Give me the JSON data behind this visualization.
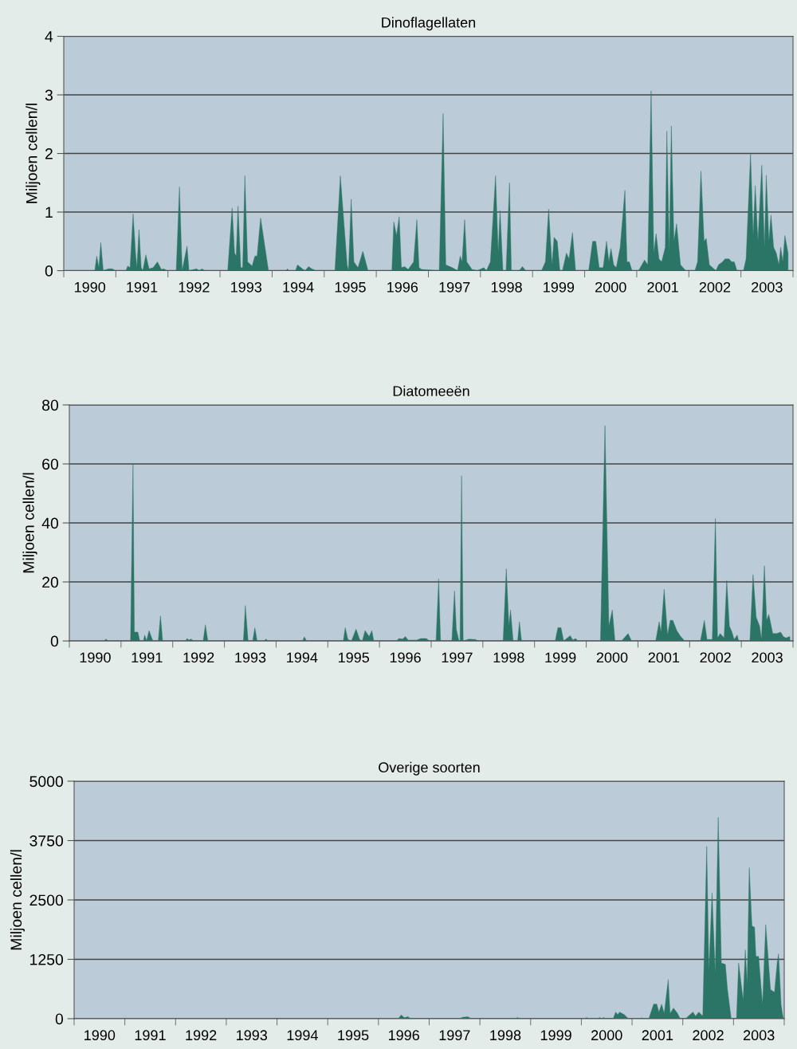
{
  "chart_data": [
    {
      "type": "area",
      "title": "Dinoflagellaten",
      "ylabel": "Miljoen cellen/l",
      "color": "#2b7566",
      "grid": "y",
      "xlim": [
        1990,
        2004
      ],
      "ylim": [
        0,
        4
      ],
      "yticks": [
        0,
        1,
        2,
        3,
        4
      ],
      "xticks": [
        {
          "value": 1990,
          "label": null
        },
        {
          "value": 1990.5,
          "label": "1990"
        },
        {
          "value": 1991,
          "label": null
        },
        {
          "value": 1991.5,
          "label": "1991"
        },
        {
          "value": 1992,
          "label": null
        },
        {
          "value": 1992.5,
          "label": "1992"
        },
        {
          "value": 1993,
          "label": null
        },
        {
          "value": 1993.5,
          "label": "1993"
        },
        {
          "value": 1994,
          "label": null
        },
        {
          "value": 1994.5,
          "label": "1994"
        },
        {
          "value": 1995,
          "label": null
        },
        {
          "value": 1995.5,
          "label": "1995"
        },
        {
          "value": 1996,
          "label": null
        },
        {
          "value": 1996.5,
          "label": "1996"
        },
        {
          "value": 1997,
          "label": null
        },
        {
          "value": 1997.5,
          "label": "1997"
        },
        {
          "value": 1998,
          "label": null
        },
        {
          "value": 1998.5,
          "label": "1998"
        },
        {
          "value": 1999,
          "label": null
        },
        {
          "value": 1999.5,
          "label": "1999"
        },
        {
          "value": 2000,
          "label": null
        },
        {
          "value": 2000.5,
          "label": "2000"
        },
        {
          "value": 2001,
          "label": null
        },
        {
          "value": 2001.5,
          "label": "2001"
        },
        {
          "value": 2002,
          "label": null
        },
        {
          "value": 2002.5,
          "label": "2002"
        },
        {
          "value": 2003,
          "label": null
        },
        {
          "value": 2003.5,
          "label": "2003"
        },
        {
          "value": 2004,
          "label": null
        }
      ],
      "x": [
        1990.596,
        1990.633,
        1990.674,
        1990.711,
        1990.758,
        1990.857,
        1990.935,
        1990.987,
        1991.195,
        1991.227,
        1991.273,
        1991.331,
        1991.378,
        1991.404,
        1991.445,
        1991.487,
        1991.518,
        1991.576,
        1991.638,
        1991.716,
        1991.799,
        1991.872,
        1991.924,
        1991.977,
        1992.159,
        1992.221,
        1992.273,
        1992.367,
        1992.404,
        1992.549,
        1992.602,
        1992.654,
        1992.706,
        1993.148,
        1993.232,
        1993.279,
        1993.31,
        1993.346,
        1993.398,
        1993.435,
        1993.477,
        1993.529,
        1993.617,
        1993.669,
        1993.711,
        1993.779,
        1993.93,
        1994.268,
        1994.294,
        1994.32,
        1994.451,
        1994.487,
        1994.581,
        1994.633,
        1994.7,
        1994.763,
        1994.841,
        1995.206,
        1995.31,
        1995.44,
        1995.466,
        1995.518,
        1995.57,
        1995.648,
        1995.742,
        1995.841,
        1996.299,
        1996.336,
        1996.388,
        1996.44,
        1996.482,
        1996.544,
        1996.612,
        1996.716,
        1996.779,
        1996.82,
        1996.872,
        1997.208,
        1997.283,
        1997.334,
        1997.46,
        1997.56,
        1997.611,
        1997.646,
        1997.696,
        1997.737,
        1997.837,
        1997.938,
        1998.064,
        1998.114,
        1998.19,
        1998.29,
        1998.341,
        1998.376,
        1998.431,
        1998.492,
        1998.557,
        1998.593,
        1998.744,
        1998.804,
        1998.87,
        1999.172,
        1999.247,
        1999.308,
        1999.373,
        1999.413,
        1999.474,
        1999.524,
        1999.574,
        1999.65,
        1999.7,
        1999.766,
        1999.826,
        2000.078,
        2000.153,
        2000.214,
        2000.279,
        2000.355,
        2000.42,
        2000.466,
        2000.506,
        2000.556,
        2000.607,
        2000.682,
        2000.773,
        2000.813,
        2000.858,
        2000.909,
        2001.035,
        2001.15,
        2001.211,
        2001.276,
        2001.327,
        2001.372,
        2001.427,
        2001.478,
        2001.548,
        2001.578,
        2001.624,
        2001.664,
        2001.714,
        2001.765,
        2001.84,
        2001.941,
        2002.117,
        2002.168,
        2002.233,
        2002.293,
        2002.334,
        2002.394,
        2002.52,
        2002.571,
        2002.646,
        2002.696,
        2002.772,
        2002.822,
        2002.873,
        2002.923,
        2003.049,
        2003.099,
        2003.185,
        2003.235,
        2003.275,
        2003.326,
        2003.401,
        2003.452,
        2003.487,
        2003.537,
        2003.577,
        2003.628,
        2003.678,
        2003.729,
        2003.764,
        2003.804,
        2003.844,
        2003.905
      ],
      "values": [
        0,
        0.25,
        0.05,
        0.48,
        0,
        0.03,
        0.03,
        0,
        0,
        0.08,
        0.05,
        0.97,
        0.3,
        0.05,
        0.7,
        0.05,
        0,
        0.27,
        0.03,
        0.05,
        0.15,
        0.02,
        0.03,
        0,
        0,
        1.43,
        0,
        0.42,
        0,
        0.03,
        0,
        0.03,
        0,
        0,
        1.07,
        0.3,
        0.25,
        1.1,
        0.05,
        0.05,
        1.62,
        0.15,
        0.08,
        0.25,
        0.25,
        0.9,
        0,
        0,
        0.03,
        0,
        0,
        0.1,
        0.03,
        0,
        0.07,
        0.03,
        0,
        0,
        1.62,
        0.1,
        0,
        1.22,
        0.15,
        0.05,
        0.33,
        0,
        0,
        0.83,
        0.6,
        0.92,
        0.05,
        0.07,
        0.02,
        0.15,
        0.87,
        0.05,
        0.02,
        0,
        2.68,
        0.1,
        0.05,
        0,
        0.25,
        0.15,
        0.87,
        0.15,
        0.02,
        0,
        0.05,
        0,
        0.15,
        1.62,
        0.3,
        1.03,
        0,
        0,
        1.5,
        0,
        0,
        0.07,
        0,
        0,
        0.15,
        1.05,
        0.1,
        0.57,
        0.5,
        0,
        0,
        0.3,
        0.2,
        0.65,
        0,
        0,
        0.5,
        0.5,
        0.05,
        0.05,
        0.5,
        0.15,
        0.38,
        0.1,
        0.05,
        0.4,
        1.37,
        0.15,
        0.15,
        0,
        0,
        0.18,
        0.1,
        3.07,
        0.3,
        0.63,
        0.2,
        0.15,
        0.4,
        2.38,
        0.3,
        2.47,
        0.5,
        0.8,
        0.1,
        0,
        0,
        0.15,
        1.7,
        0.5,
        0.55,
        0.1,
        0,
        0.1,
        0.15,
        0.2,
        0.2,
        0.15,
        0.15,
        0,
        0,
        0.2,
        2.0,
        0.6,
        1.45,
        0.5,
        1.8,
        0.4,
        1.63,
        0.5,
        0.95,
        0.4,
        0.3,
        0.1,
        0.4,
        0.15,
        0.6,
        0.3
      ]
    },
    {
      "type": "area",
      "title": "Diatomeeën",
      "ylabel": "Miljoen cellen/l",
      "color": "#2b7566",
      "grid": "y",
      "xlim": [
        1990,
        2004
      ],
      "ylim": [
        0,
        80
      ],
      "yticks": [
        0,
        20,
        40,
        60,
        80
      ],
      "xticks": [
        {
          "value": 1990,
          "label": null
        },
        {
          "value": 1990.5,
          "label": "1990"
        },
        {
          "value": 1991,
          "label": null
        },
        {
          "value": 1991.5,
          "label": "1991"
        },
        {
          "value": 1992,
          "label": null
        },
        {
          "value": 1992.5,
          "label": "1992"
        },
        {
          "value": 1993,
          "label": null
        },
        {
          "value": 1993.5,
          "label": "1993"
        },
        {
          "value": 1994,
          "label": null
        },
        {
          "value": 1994.5,
          "label": "1994"
        },
        {
          "value": 1995,
          "label": null
        },
        {
          "value": 1995.5,
          "label": "1995"
        },
        {
          "value": 1996,
          "label": null
        },
        {
          "value": 1996.5,
          "label": "1996"
        },
        {
          "value": 1997,
          "label": null
        },
        {
          "value": 1997.5,
          "label": "1997"
        },
        {
          "value": 1998,
          "label": null
        },
        {
          "value": 1998.5,
          "label": "1998"
        },
        {
          "value": 1999,
          "label": null
        },
        {
          "value": 1999.5,
          "label": "1999"
        },
        {
          "value": 2000,
          "label": null
        },
        {
          "value": 2000.5,
          "label": "2000"
        },
        {
          "value": 2001,
          "label": null
        },
        {
          "value": 2001.5,
          "label": "2001"
        },
        {
          "value": 2002,
          "label": null
        },
        {
          "value": 2002.5,
          "label": "2002"
        },
        {
          "value": 2003,
          "label": null
        },
        {
          "value": 2003.5,
          "label": "2003"
        },
        {
          "value": 2004,
          "label": null
        }
      ],
      "x": [
        1990.668,
        1990.711,
        1990.747,
        1991.184,
        1991.232,
        1991.258,
        1991.3,
        1991.326,
        1991.363,
        1991.432,
        1991.458,
        1991.495,
        1991.542,
        1991.616,
        1991.721,
        1991.763,
        1991.805,
        1992.247,
        1992.279,
        1992.311,
        1992.353,
        1992.405,
        1992.589,
        1992.632,
        1992.679,
        1993.368,
        1993.405,
        1993.458,
        1993.547,
        1993.589,
        1993.632,
        1993.774,
        1993.8,
        1993.853,
        1994.511,
        1994.547,
        1994.589,
        1995.3,
        1995.337,
        1995.389,
        1995.458,
        1995.547,
        1995.616,
        1995.668,
        1995.721,
        1995.8,
        1995.853,
        1995.889,
        1996.326,
        1996.379,
        1996.447,
        1996.5,
        1996.553,
        1996.721,
        1996.8,
        1996.905,
        1996.967,
        1997.094,
        1997.145,
        1997.181,
        1997.4,
        1997.451,
        1997.486,
        1997.537,
        1997.558,
        1997.588,
        1997.619,
        1997.731,
        1997.858,
        1997.909,
        1998.392,
        1998.453,
        1998.504,
        1998.535,
        1998.586,
        1998.672,
        1998.708,
        1998.748,
        1999.4,
        1999.451,
        1999.512,
        1999.563,
        1999.69,
        1999.741,
        1999.792,
        1999.843,
        2000.275,
        2000.362,
        2000.438,
        2000.504,
        2000.555,
        2000.682,
        2000.81,
        2000.876,
        2001.344,
        2001.41,
        2001.446,
        2001.507,
        2001.573,
        2001.624,
        2001.675,
        2001.751,
        2001.827,
        2001.904,
        2002.209,
        2002.285,
        2002.336,
        2002.438,
        2002.499,
        2002.54,
        2002.591,
        2002.667,
        2002.718,
        2002.769,
        2002.82,
        2002.86,
        2002.921,
        2002.947,
        2003.166,
        2003.227,
        2003.288,
        2003.354,
        2003.39,
        2003.446,
        2003.491,
        2003.532,
        2003.608,
        2003.685,
        2003.761,
        2003.812,
        2003.863,
        2003.939
      ],
      "values": [
        0,
        0.6,
        0,
        0,
        60,
        3,
        3,
        3,
        0,
        0,
        2,
        0,
        3.5,
        0,
        0,
        8.5,
        0,
        0,
        0.8,
        0.3,
        0.6,
        0,
        0,
        5.5,
        0,
        0,
        12,
        0,
        0,
        4.5,
        0,
        0,
        0.6,
        0,
        0,
        1.4,
        0,
        0,
        4.5,
        0.5,
        0,
        4,
        0.5,
        0,
        3.5,
        1.5,
        3.5,
        0,
        0,
        0.8,
        0.6,
        1.5,
        0.3,
        0.3,
        0.8,
        0.8,
        0,
        0,
        21,
        0,
        0,
        17,
        4,
        0,
        0,
        56,
        0,
        0.6,
        0.5,
        0,
        0,
        24.5,
        5,
        10.5,
        0,
        0,
        6.5,
        0,
        0,
        4.5,
        4.5,
        0,
        1.8,
        0.3,
        0.8,
        0,
        0,
        73,
        5,
        10.5,
        0,
        0,
        2.5,
        0,
        0,
        6.5,
        3,
        17.5,
        2,
        7,
        7,
        3.5,
        1.5,
        0,
        0,
        7,
        0.5,
        0.5,
        41.5,
        1,
        2.5,
        1,
        20.5,
        5,
        3,
        0.5,
        2,
        0,
        0,
        22.5,
        8,
        5,
        0.5,
        25.5,
        7,
        9,
        2.5,
        2.5,
        3,
        1.5,
        1,
        1.5
      ]
    },
    {
      "type": "area",
      "title": "Overige soorten",
      "ylabel": "Miljoen cellen/l",
      "color": "#2b7566",
      "grid": "y",
      "xlim": [
        1990,
        2004
      ],
      "ylim": [
        0,
        5000
      ],
      "yticks": [
        0,
        1250,
        2500,
        3750,
        5000
      ],
      "xticks": [
        {
          "value": 1990,
          "label": null
        },
        {
          "value": 1990.5,
          "label": "1990"
        },
        {
          "value": 1991,
          "label": null
        },
        {
          "value": 1991.5,
          "label": "1991"
        },
        {
          "value": 1992,
          "label": null
        },
        {
          "value": 1992.5,
          "label": "1992"
        },
        {
          "value": 1993,
          "label": null
        },
        {
          "value": 1993.5,
          "label": "1993"
        },
        {
          "value": 1994,
          "label": null
        },
        {
          "value": 1994.5,
          "label": "1994"
        },
        {
          "value": 1995,
          "label": null
        },
        {
          "value": 1995.5,
          "label": "1995"
        },
        {
          "value": 1996,
          "label": null
        },
        {
          "value": 1996.5,
          "label": "1996"
        },
        {
          "value": 1997,
          "label": null
        },
        {
          "value": 1997.5,
          "label": "1997"
        },
        {
          "value": 1998,
          "label": null
        },
        {
          "value": 1998.5,
          "label": "1998"
        },
        {
          "value": 1999,
          "label": null
        },
        {
          "value": 1999.5,
          "label": "1999"
        },
        {
          "value": 2000,
          "label": null
        },
        {
          "value": 2000.5,
          "label": "2000"
        },
        {
          "value": 2001,
          "label": null
        },
        {
          "value": 2001.5,
          "label": "2001"
        },
        {
          "value": 2002,
          "label": null
        },
        {
          "value": 2002.5,
          "label": "2002"
        },
        {
          "value": 2003,
          "label": null
        },
        {
          "value": 2003.5,
          "label": "2003"
        },
        {
          "value": 2004,
          "label": null
        }
      ],
      "x": [
        1996.392,
        1996.447,
        1996.511,
        1996.582,
        1996.636,
        1997.601,
        1997.653,
        1997.758,
        1997.836,
        1998.701,
        1998.742,
        1998.779,
        2000.063,
        2000.105,
        2000.141,
        2000.324,
        2000.361,
        2000.403,
        2000.44,
        2000.482,
        2000.628,
        2000.676,
        2000.717,
        2000.754,
        2000.848,
        2000.927,
        2001.163,
        2001.189,
        2001.215,
        2001.33,
        2001.425,
        2001.487,
        2001.529,
        2001.582,
        2001.634,
        2001.713,
        2001.749,
        2001.817,
        2001.896,
        2001.948,
        2002.053,
        2002.2,
        2002.252,
        2002.315,
        2002.394,
        2002.472,
        2002.514,
        2002.577,
        2002.64,
        2002.698,
        2002.76,
        2002.839,
        2002.881,
        2002.954,
        2003.059,
        2003.101,
        2003.19,
        2003.232,
        2003.269,
        2003.31,
        2003.363,
        2003.415,
        2003.441,
        2003.494,
        2003.572,
        2003.635,
        2003.729,
        2003.808,
        2003.86,
        2003.887,
        2003.939,
        2003.981
      ],
      "values": [
        0,
        80,
        20,
        40,
        0,
        0,
        28,
        40,
        0,
        0,
        25,
        0,
        0,
        25,
        0,
        0,
        25,
        0,
        25,
        0,
        0,
        140,
        84,
        140,
        84,
        0,
        0,
        20,
        0,
        0,
        307,
        307,
        140,
        307,
        112,
        826,
        112,
        223,
        112,
        0,
        0,
        140,
        56,
        140,
        56,
        3627,
        1004,
        2650,
        949,
        4241,
        1172,
        1144,
        614,
        0,
        0,
        1172,
        391,
        1451,
        725,
        3181,
        1953,
        1925,
        1311,
        1311,
        307,
        1981,
        614,
        558,
        1172,
        1367,
        279,
        0
      ]
    }
  ]
}
